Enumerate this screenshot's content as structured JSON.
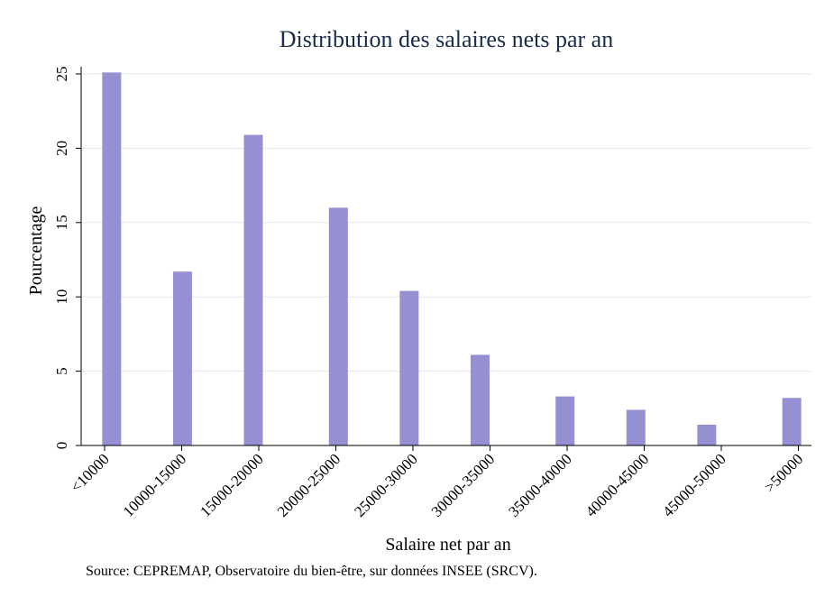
{
  "chart_data": {
    "type": "bar",
    "title": "Distribution des salaires nets par an",
    "xlabel": "Salaire net par an",
    "ylabel": "Pourcentage",
    "categories": [
      "<10000",
      "10000-15000",
      "15000-20000",
      "20000-25000",
      "25000-30000",
      "30000-35000",
      "35000-40000",
      "40000-45000",
      "45000-50000",
      ">50000"
    ],
    "bar_positions": [
      0.5,
      5.5,
      10.5,
      16.5,
      21.5,
      26.5,
      32.5,
      37.5,
      42.5,
      48.5
    ],
    "values": [
      25.1,
      11.7,
      20.9,
      16.0,
      10.4,
      6.1,
      3.3,
      2.4,
      1.4,
      3.2
    ],
    "ylim": [
      0,
      25
    ],
    "yticks": [
      0,
      5,
      10,
      15,
      20,
      25
    ],
    "grid": true,
    "bar_color": "#9590d2",
    "source": "Source: CEPREMAP, Observatoire du bien-être, sur données INSEE (SRCV)."
  }
}
